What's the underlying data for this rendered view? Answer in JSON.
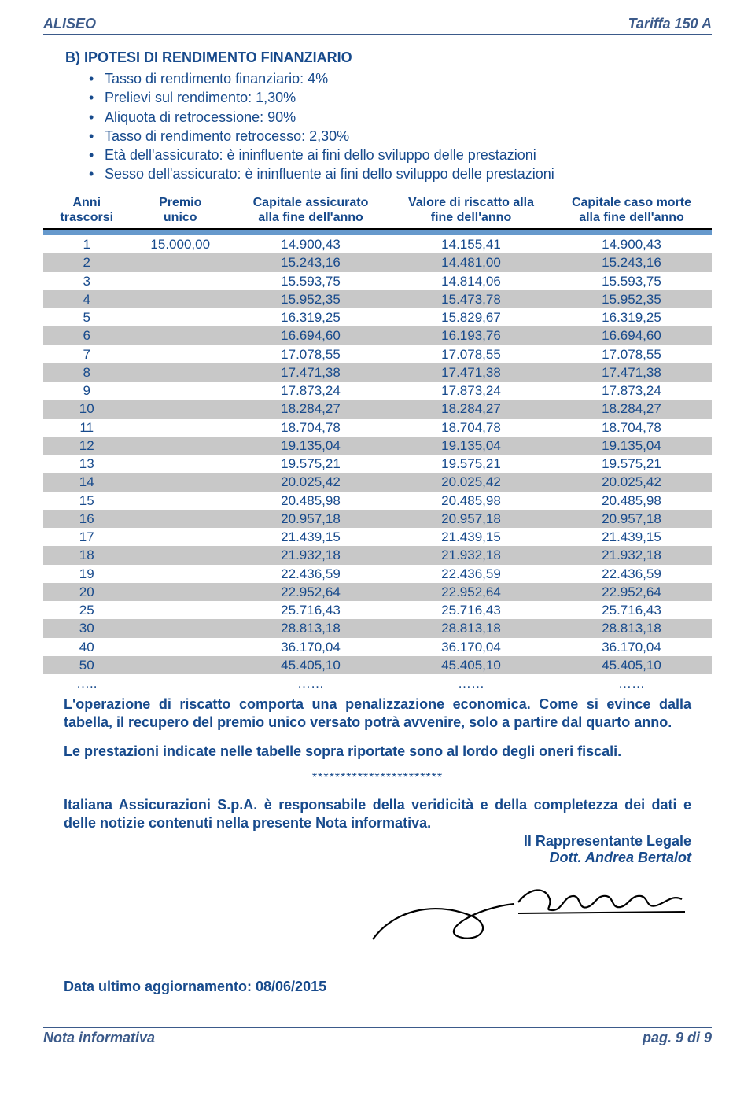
{
  "header": {
    "left": "ALISEO",
    "right": "Tariffa 150 A"
  },
  "section_title": "B) IPOTESI DI RENDIMENTO FINANZIARIO",
  "bullets": [
    "Tasso di rendimento finanziario: 4%",
    "Prelievi sul rendimento: 1,30%",
    "Aliquota di retrocessione: 90%",
    "Tasso di rendimento retrocesso: 2,30%",
    "Età dell'assicurato: è ininfluente ai fini dello sviluppo delle prestazioni",
    "Sesso dell'assicurato: è ininfluente ai fini dello sviluppo delle prestazioni"
  ],
  "table": {
    "columns": [
      "Anni\ntrascorsi",
      "Premio\nunico",
      "Capitale assicurato\nalla fine dell'anno",
      "Valore di riscatto alla\nfine dell'anno",
      "Capitale caso morte\nalla fine dell'anno"
    ],
    "col_widths": [
      "13%",
      "15%",
      "24%",
      "24%",
      "24%"
    ],
    "band_color": "#6699cc",
    "alt_row_bg": "#c8c8c8",
    "text_color": "#174a8c",
    "rows": [
      [
        "1",
        "15.000,00",
        "14.900,43",
        "14.155,41",
        "14.900,43"
      ],
      [
        "2",
        "",
        "15.243,16",
        "14.481,00",
        "15.243,16"
      ],
      [
        "3",
        "",
        "15.593,75",
        "14.814,06",
        "15.593,75"
      ],
      [
        "4",
        "",
        "15.952,35",
        "15.473,78",
        "15.952,35"
      ],
      [
        "5",
        "",
        "16.319,25",
        "15.829,67",
        "16.319,25"
      ],
      [
        "6",
        "",
        "16.694,60",
        "16.193,76",
        "16.694,60"
      ],
      [
        "7",
        "",
        "17.078,55",
        "17.078,55",
        "17.078,55"
      ],
      [
        "8",
        "",
        "17.471,38",
        "17.471,38",
        "17.471,38"
      ],
      [
        "9",
        "",
        "17.873,24",
        "17.873,24",
        "17.873,24"
      ],
      [
        "10",
        "",
        "18.284,27",
        "18.284,27",
        "18.284,27"
      ],
      [
        "11",
        "",
        "18.704,78",
        "18.704,78",
        "18.704,78"
      ],
      [
        "12",
        "",
        "19.135,04",
        "19.135,04",
        "19.135,04"
      ],
      [
        "13",
        "",
        "19.575,21",
        "19.575,21",
        "19.575,21"
      ],
      [
        "14",
        "",
        "20.025,42",
        "20.025,42",
        "20.025,42"
      ],
      [
        "15",
        "",
        "20.485,98",
        "20.485,98",
        "20.485,98"
      ],
      [
        "16",
        "",
        "20.957,18",
        "20.957,18",
        "20.957,18"
      ],
      [
        "17",
        "",
        "21.439,15",
        "21.439,15",
        "21.439,15"
      ],
      [
        "18",
        "",
        "21.932,18",
        "21.932,18",
        "21.932,18"
      ],
      [
        "19",
        "",
        "22.436,59",
        "22.436,59",
        "22.436,59"
      ],
      [
        "20",
        "",
        "22.952,64",
        "22.952,64",
        "22.952,64"
      ],
      [
        "25",
        "",
        "25.716,43",
        "25.716,43",
        "25.716,43"
      ],
      [
        "30",
        "",
        "28.813,18",
        "28.813,18",
        "28.813,18"
      ],
      [
        "40",
        "",
        "36.170,04",
        "36.170,04",
        "36.170,04"
      ],
      [
        "50",
        "",
        "45.405,10",
        "45.405,10",
        "45.405,10"
      ],
      [
        "…..",
        "",
        "……",
        "……",
        "……"
      ]
    ]
  },
  "note_lead": "L'operazione di riscatto comporta una penalizzazione economica. Come si evince dalla tabella, ",
  "note_underline": "il recupero del premio unico versato potrà avvenire, solo a partire dal quarto anno.",
  "single_line": "Le prestazioni indicate nelle tabelle sopra riportate sono al lordo degli oneri fiscali.",
  "stars": "***********************",
  "resp_bold": "Italiana Assicurazioni S.p.A. è responsabile della veridicità e della completezza dei dati e delle notizie contenuti nella presente Nota informativa.",
  "sig_title": "Il Rappresentante Legale",
  "sig_name": "Dott. Andrea Bertalot",
  "update": "Data ultimo aggiornamento: 08/06/2015",
  "footer": {
    "left": "Nota informativa",
    "right": "pag. 9 di 9"
  }
}
